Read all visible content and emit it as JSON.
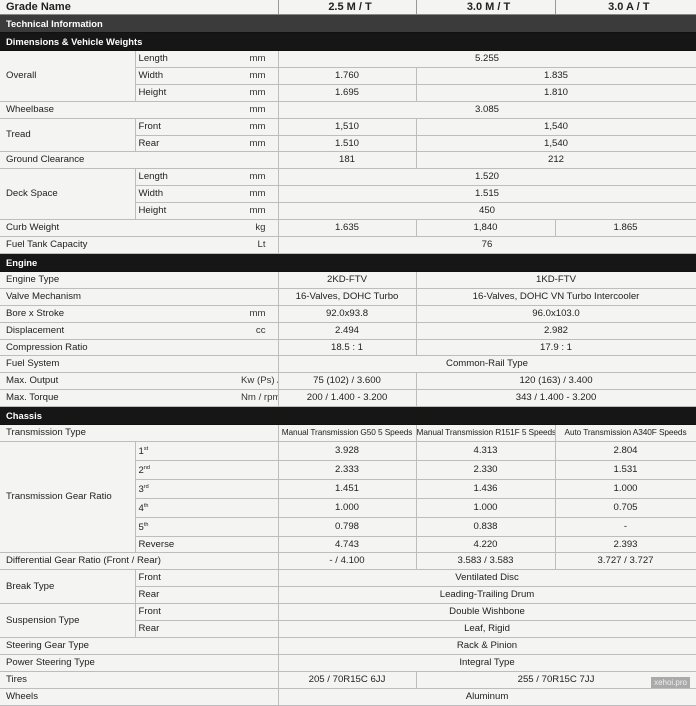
{
  "header": {
    "label": "Grade Name",
    "grades": [
      "2.5 M / T",
      "3.0 M / T",
      "3.0 A / T"
    ]
  },
  "title_bar": "Technical Information",
  "watermark": "xehoi.pro",
  "sections": [
    {
      "title": "Dimensions & Vehicle Weights",
      "style": "b2",
      "groups": [
        {
          "label": "Overall",
          "rows": [
            {
              "sub": "Length",
              "unit": "mm",
              "values": [
                {
                  "v": "5.255",
                  "span": 3
                }
              ]
            },
            {
              "sub": "Width",
              "unit": "mm",
              "values": [
                {
                  "v": "1.760"
                },
                {
                  "v": "1.835",
                  "span": 2
                }
              ]
            },
            {
              "sub": "Height",
              "unit": "mm",
              "values": [
                {
                  "v": "1.695"
                },
                {
                  "v": "1.810",
                  "span": 2
                }
              ]
            }
          ]
        },
        {
          "label": "Wheelbase",
          "rows": [
            {
              "unit": "mm",
              "values": [
                {
                  "v": "3.085",
                  "span": 3
                }
              ]
            }
          ]
        },
        {
          "label": "Tread",
          "rows": [
            {
              "sub": "Front",
              "unit": "mm",
              "values": [
                {
                  "v": "1,510"
                },
                {
                  "v": "1,540",
                  "span": 2
                }
              ]
            },
            {
              "sub": "Rear",
              "unit": "mm",
              "values": [
                {
                  "v": "1.510"
                },
                {
                  "v": "1,540",
                  "span": 2
                }
              ]
            }
          ]
        },
        {
          "label": "Ground Clearance",
          "rows": [
            {
              "unit": "",
              "values": [
                {
                  "v": "181"
                },
                {
                  "v": "212",
                  "span": 2
                }
              ]
            }
          ]
        },
        {
          "label": "Deck Space",
          "rows": [
            {
              "sub": "Length",
              "unit": "mm",
              "values": [
                {
                  "v": "1.520",
                  "span": 3
                }
              ]
            },
            {
              "sub": "Width",
              "unit": "mm",
              "values": [
                {
                  "v": "1.515",
                  "span": 3
                }
              ]
            },
            {
              "sub": "Height",
              "unit": "mm",
              "values": [
                {
                  "v": "450",
                  "span": 3
                }
              ]
            }
          ]
        },
        {
          "label": "Curb Weight",
          "rows": [
            {
              "unit": "kg",
              "values": [
                {
                  "v": "1.635"
                },
                {
                  "v": "1,840"
                },
                {
                  "v": "1.865"
                }
              ]
            }
          ]
        },
        {
          "label": "Fuel Tank Capacity",
          "rows": [
            {
              "unit": "Lt",
              "values": [
                {
                  "v": "76",
                  "span": 3
                }
              ]
            }
          ]
        }
      ]
    },
    {
      "title": "Engine",
      "style": "b2",
      "groups": [
        {
          "label": "Engine Type",
          "rows": [
            {
              "unit": "",
              "values": [
                {
                  "v": "2KD-FTV"
                },
                {
                  "v": "1KD-FTV",
                  "span": 2
                }
              ]
            }
          ]
        },
        {
          "label": "Valve Mechanism",
          "rows": [
            {
              "unit": "",
              "values": [
                {
                  "v": "16-Valves, DOHC Turbo"
                },
                {
                  "v": "16-Valves, DOHC VN Turbo Intercooler",
                  "span": 2
                }
              ]
            }
          ]
        },
        {
          "label": "Bore x Stroke",
          "rows": [
            {
              "unit": "mm",
              "values": [
                {
                  "v": "92.0x93.8"
                },
                {
                  "v": "96.0x103.0",
                  "span": 2
                }
              ]
            }
          ]
        },
        {
          "label": "Displacement",
          "rows": [
            {
              "unit": "cc",
              "values": [
                {
                  "v": "2.494"
                },
                {
                  "v": "2.982",
                  "span": 2
                }
              ]
            }
          ]
        },
        {
          "label": "Compression Ratio",
          "rows": [
            {
              "unit": "",
              "values": [
                {
                  "v": "18.5 : 1"
                },
                {
                  "v": "17.9 : 1",
                  "span": 2
                }
              ]
            }
          ]
        },
        {
          "label": "Fuel System",
          "rows": [
            {
              "unit": "",
              "values": [
                {
                  "v": "Common-Rail Type",
                  "span": 3
                }
              ]
            }
          ]
        },
        {
          "label": "Max. Output",
          "rows": [
            {
              "unit": "Kw (Ps) / rpm",
              "values": [
                {
                  "v": "75 (102) / 3.600"
                },
                {
                  "v": "120 (163) / 3.400",
                  "span": 2
                }
              ]
            }
          ]
        },
        {
          "label": "Max. Torque",
          "rows": [
            {
              "unit": "Nm / rpm",
              "values": [
                {
                  "v": "200 / 1.400 - 3.200"
                },
                {
                  "v": "343 / 1.400 - 3.200",
                  "span": 2
                }
              ]
            }
          ]
        }
      ]
    },
    {
      "title": "Chassis",
      "style": "b2",
      "groups": [
        {
          "label": "Transmission Type",
          "rows": [
            {
              "unit": "",
              "small": true,
              "values": [
                {
                  "v": "Manual Transmission G50 5 Speeds"
                },
                {
                  "v": "Manual Transmission R151F 5 Speeds"
                },
                {
                  "v": "Auto Transmission A340F Speeds"
                }
              ]
            }
          ]
        },
        {
          "label": "Transmission Gear Ratio",
          "rows": [
            {
              "sub": "1",
              "sup": "st",
              "values": [
                {
                  "v": "3.928"
                },
                {
                  "v": "4.313"
                },
                {
                  "v": "2.804"
                }
              ]
            },
            {
              "sub": "2",
              "sup": "nd",
              "values": [
                {
                  "v": "2.333"
                },
                {
                  "v": "2.330"
                },
                {
                  "v": "1.531"
                }
              ]
            },
            {
              "sub": "3",
              "sup": "rd",
              "values": [
                {
                  "v": "1.451"
                },
                {
                  "v": "1.436"
                },
                {
                  "v": "1.000"
                }
              ]
            },
            {
              "sub": "4",
              "sup": "th",
              "values": [
                {
                  "v": "1.000"
                },
                {
                  "v": "1.000"
                },
                {
                  "v": "0.705"
                }
              ]
            },
            {
              "sub": "5",
              "sup": "th",
              "values": [
                {
                  "v": "0.798"
                },
                {
                  "v": "0.838"
                },
                {
                  "v": "-"
                }
              ]
            },
            {
              "sub": "Reverse",
              "values": [
                {
                  "v": "4.743"
                },
                {
                  "v": "4.220"
                },
                {
                  "v": "2.393"
                }
              ]
            }
          ]
        },
        {
          "label": "Differential Gear Ratio (Front / Rear)",
          "rows": [
            {
              "unit": "",
              "values": [
                {
                  "v": "- / 4.100"
                },
                {
                  "v": "3.583 / 3.583"
                },
                {
                  "v": "3.727 / 3.727"
                }
              ]
            }
          ]
        },
        {
          "label": "Break Type",
          "rows": [
            {
              "sub": "Front",
              "values": [
                {
                  "v": "Ventilated Disc",
                  "span": 3
                }
              ]
            },
            {
              "sub": "Rear",
              "values": [
                {
                  "v": "Leading-Trailing Drum",
                  "span": 3
                }
              ]
            }
          ]
        },
        {
          "label": "Suspension Type",
          "rows": [
            {
              "sub": "Front",
              "values": [
                {
                  "v": "Double Wishbone",
                  "span": 3
                }
              ]
            },
            {
              "sub": "Rear",
              "values": [
                {
                  "v": "Leaf, Rigid",
                  "span": 3
                }
              ]
            }
          ]
        },
        {
          "label": "Steering Gear Type",
          "rows": [
            {
              "unit": "",
              "values": [
                {
                  "v": "Rack & Pinion",
                  "span": 3
                }
              ]
            }
          ]
        },
        {
          "label": "Power Steering Type",
          "rows": [
            {
              "unit": "",
              "values": [
                {
                  "v": "Integral Type",
                  "span": 3
                }
              ]
            }
          ]
        },
        {
          "label": "Tires",
          "rows": [
            {
              "unit": "",
              "values": [
                {
                  "v": "205 / 70R15C 6JJ"
                },
                {
                  "v": "255 / 70R15C 7JJ",
                  "span": 2
                }
              ]
            }
          ]
        },
        {
          "label": "Wheels",
          "rows": [
            {
              "unit": "",
              "values": [
                {
                  "v": "Aluminum",
                  "span": 3
                }
              ]
            }
          ]
        }
      ]
    }
  ]
}
